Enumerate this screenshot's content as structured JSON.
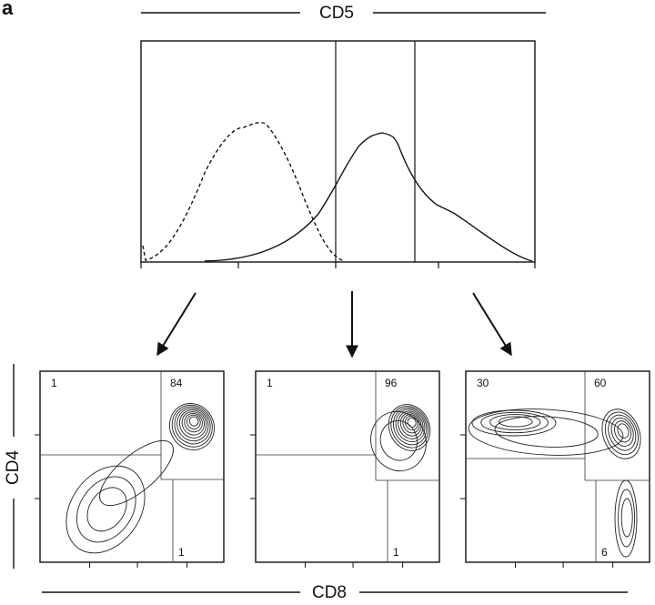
{
  "panel_label": "a",
  "histogram": {
    "marker": "CD5"
  },
  "dot_plots": {
    "y_marker": "CD4",
    "x_marker": "CD8",
    "panels": [
      {
        "upper_left": 1,
        "upper_right": 84,
        "lower_right": 1
      },
      {
        "upper_left": 1,
        "upper_right": 96,
        "lower_right": 1
      },
      {
        "upper_left": 30,
        "upper_right": 60,
        "lower_right": 6
      }
    ]
  }
}
